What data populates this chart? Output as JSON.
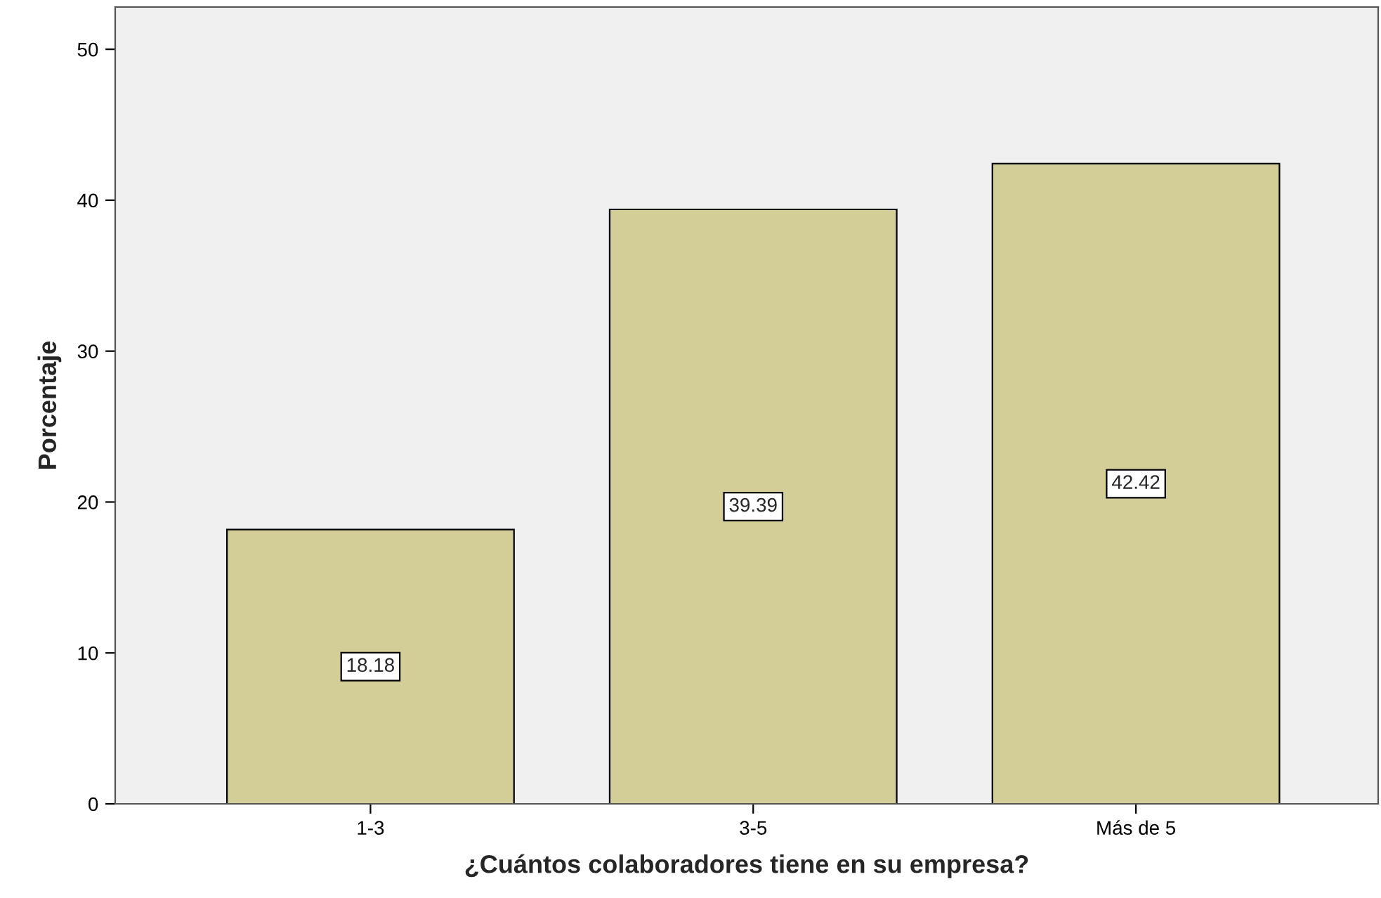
{
  "chart_data": {
    "type": "bar",
    "xlabel": "¿Cuántos colaboradores tiene en su empresa?",
    "ylabel": "Porcentaje",
    "categories": [
      "1-3",
      "3-5",
      "Más de 5"
    ],
    "values": [
      18.18,
      39.39,
      42.42
    ],
    "color": "#d3cd98",
    "ylim": [
      0,
      52.8
    ],
    "yticks": [
      0,
      10,
      20,
      30,
      40,
      50
    ],
    "data_labels": true,
    "grid": false
  }
}
